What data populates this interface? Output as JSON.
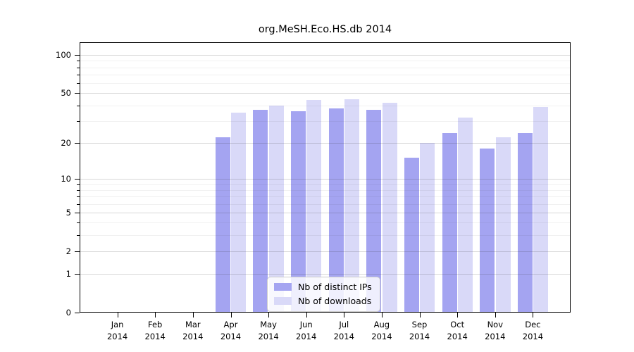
{
  "title": "org.MeSH.Eco.HS.db 2014",
  "colors": {
    "ips_bar": "#a4a4f1",
    "downloads_bar": "#d9d9f8",
    "axis": "#000000",
    "major_grid": "#d6d6d6",
    "minor_grid": "#efefef",
    "legend_border": "#cccccc"
  },
  "legend": {
    "items": [
      {
        "label": "Nb of distinct IPs",
        "series_key": "ips"
      },
      {
        "label": "Nb of downloads",
        "series_key": "downloads"
      }
    ],
    "position": "lower center"
  },
  "chart_data": {
    "type": "bar",
    "title": "org.MeSH.Eco.HS.db 2014",
    "categories": [
      "Jan 2014",
      "Feb 2014",
      "Mar 2014",
      "Apr 2014",
      "May 2014",
      "Jun 2014",
      "Jul 2014",
      "Aug 2014",
      "Sep 2014",
      "Oct 2014",
      "Nov 2014",
      "Dec 2014"
    ],
    "x_tick_line1": [
      "Jan",
      "Feb",
      "Mar",
      "Apr",
      "May",
      "Jun",
      "Jul",
      "Aug",
      "Sep",
      "Oct",
      "Nov",
      "Dec"
    ],
    "x_tick_line2": [
      "2014",
      "2014",
      "2014",
      "2014",
      "2014",
      "2014",
      "2014",
      "2014",
      "2014",
      "2014",
      "2014",
      "2014"
    ],
    "series": [
      {
        "name": "Nb of distinct IPs",
        "key": "ips",
        "color": "#a4a4f1",
        "values": [
          0,
          0,
          0,
          22,
          37,
          36,
          38,
          37,
          15,
          24,
          18,
          24
        ]
      },
      {
        "name": "Nb of downloads",
        "key": "downloads",
        "color": "#d9d9f8",
        "values": [
          0,
          0,
          0,
          35,
          40,
          44,
          45,
          42,
          20,
          32,
          22,
          39
        ]
      }
    ],
    "xlabel": "",
    "ylabel": "",
    "y_scale": "log10(1+v)",
    "ylim": [
      0,
      126
    ],
    "y_major_ticks": [
      0,
      1,
      2,
      5,
      10,
      20,
      50,
      100
    ],
    "y_minor_ticks": [
      3,
      4,
      6,
      7,
      8,
      9,
      30,
      40,
      60,
      70,
      80,
      90
    ],
    "grid": true,
    "grid_above_bars": true,
    "legend_position": "lower center"
  }
}
